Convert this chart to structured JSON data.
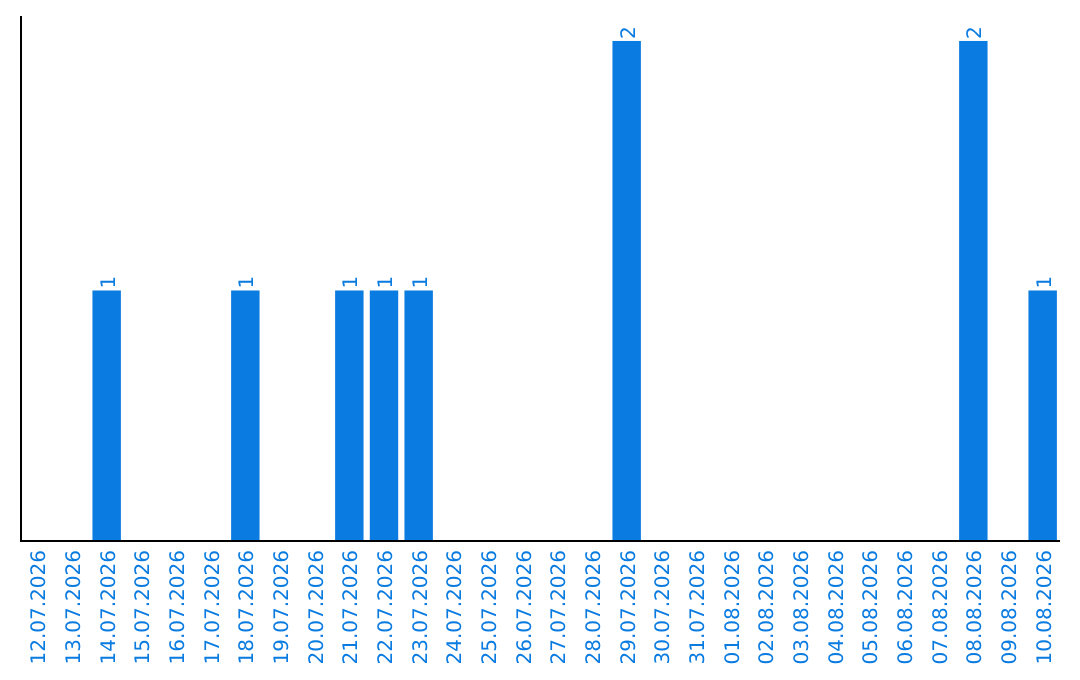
{
  "chart_data": {
    "type": "bar",
    "categories": [
      "12.07.2026",
      "13.07.2026",
      "14.07.2026",
      "15.07.2026",
      "16.07.2026",
      "17.07.2026",
      "18.07.2026",
      "19.07.2026",
      "20.07.2026",
      "21.07.2026",
      "22.07.2026",
      "23.07.2026",
      "24.07.2026",
      "25.07.2026",
      "26.07.2026",
      "27.07.2026",
      "28.07.2026",
      "29.07.2026",
      "30.07.2026",
      "31.07.2026",
      "01.08.2026",
      "02.08.2026",
      "03.08.2026",
      "04.08.2026",
      "05.08.2026",
      "06.08.2026",
      "07.08.2026",
      "08.08.2026",
      "09.08.2026",
      "10.08.2026"
    ],
    "values": [
      0,
      0,
      1,
      0,
      0,
      0,
      1,
      0,
      0,
      1,
      1,
      1,
      0,
      0,
      0,
      0,
      0,
      2,
      0,
      0,
      0,
      0,
      0,
      0,
      0,
      0,
      0,
      2,
      0,
      1
    ],
    "value_labels": [
      null,
      null,
      "1",
      null,
      null,
      null,
      "1",
      null,
      null,
      "1",
      "1",
      "1",
      null,
      null,
      null,
      null,
      null,
      "2",
      null,
      null,
      null,
      null,
      null,
      null,
      null,
      null,
      null,
      "2",
      null,
      "1"
    ],
    "color": "#0a7be0",
    "ylim": [
      0,
      2.1
    ],
    "tick_labels": "x"
  }
}
